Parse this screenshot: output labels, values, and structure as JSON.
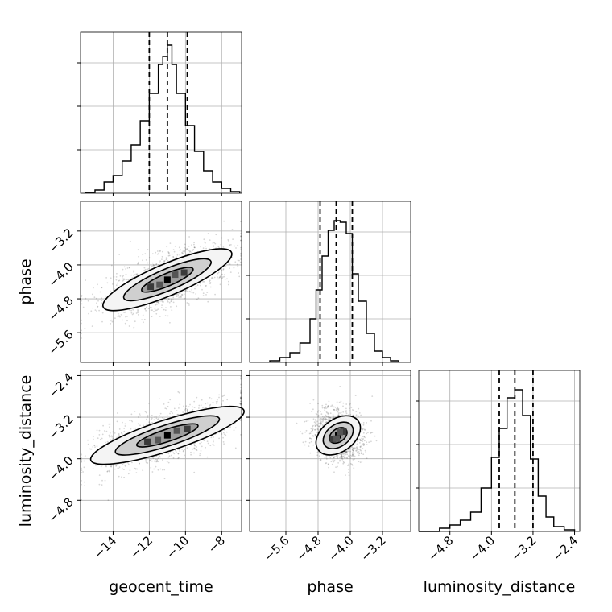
{
  "chart_data": {
    "type": "corner",
    "parameters": [
      "geocent_time",
      "phase",
      "luminosity_distance"
    ],
    "grid": true,
    "marginals": [
      {
        "parameter": "geocent_time",
        "xlim": [
          -15.8,
          -6.9
        ],
        "xticks": [
          -14,
          -12,
          -10,
          -8
        ],
        "xtick_labels": [
          "−14",
          "−12",
          "−10",
          "−8"
        ],
        "quantiles": [
          -12.0,
          -11.0,
          -9.9
        ],
        "bin_edges": [
          -15.5,
          -15.0,
          -14.5,
          -14.0,
          -13.5,
          -13.0,
          -12.5,
          -12.0,
          -11.5,
          -11.25,
          -11.0,
          -10.75,
          -10.5,
          -10.0,
          -9.5,
          -9.0,
          -8.5,
          -8.0,
          -7.5,
          -7.0
        ],
        "counts": [
          0.005,
          0.02,
          0.07,
          0.11,
          0.2,
          0.3,
          0.45,
          0.62,
          0.8,
          0.85,
          0.92,
          0.8,
          0.62,
          0.42,
          0.26,
          0.14,
          0.07,
          0.03,
          0.01
        ]
      },
      {
        "parameter": "phase",
        "xlim": [
          -6.5,
          -2.5
        ],
        "xticks": [
          -5.6,
          -4.8,
          -4.0,
          -3.2
        ],
        "xtick_labels": [
          "−5.6",
          "−4.8",
          "−4.0",
          "−3.2"
        ],
        "quantiles": [
          -4.75,
          -4.35,
          -3.95
        ],
        "bin_edges": [
          -6.0,
          -5.75,
          -5.5,
          -5.25,
          -5.0,
          -4.85,
          -4.7,
          -4.55,
          -4.4,
          -4.25,
          -4.1,
          -3.95,
          -3.8,
          -3.6,
          -3.4,
          -3.2,
          -3.0,
          -2.8
        ],
        "counts": [
          0.01,
          0.03,
          0.06,
          0.12,
          0.27,
          0.45,
          0.66,
          0.82,
          0.88,
          0.87,
          0.8,
          0.55,
          0.38,
          0.18,
          0.07,
          0.03,
          0.01
        ]
      },
      {
        "parameter": "luminosity_distance",
        "xlim": [
          -5.4,
          -2.3
        ],
        "xticks": [
          -4.8,
          -4.0,
          -3.2,
          -2.4
        ],
        "xtick_labels": [
          "−4.8",
          "−4.0",
          "−3.2",
          "−2.4"
        ],
        "quantiles": [
          -3.85,
          -3.55,
          -3.2
        ],
        "bin_edges": [
          -5.4,
          -5.0,
          -4.8,
          -4.6,
          -4.4,
          -4.2,
          -4.0,
          -3.85,
          -3.7,
          -3.55,
          -3.4,
          -3.25,
          -3.1,
          -2.95,
          -2.8,
          -2.6,
          -2.4
        ],
        "counts": [
          0.0,
          0.02,
          0.04,
          0.07,
          0.12,
          0.27,
          0.46,
          0.64,
          0.83,
          0.88,
          0.72,
          0.45,
          0.22,
          0.09,
          0.03,
          0.01
        ]
      }
    ],
    "joint": [
      {
        "x": "geocent_time",
        "y": "phase",
        "xlim": [
          -15.8,
          -6.9
        ],
        "ylim": [
          -6.3,
          -2.5
        ],
        "yticks": [
          -5.6,
          -4.8,
          -4.0,
          -3.2
        ],
        "ytick_labels": [
          "−5.6",
          "−4.8",
          "−4.0",
          "−3.2"
        ],
        "center": [
          -11.0,
          -4.35
        ],
        "axis_major_length": 5.2,
        "axis_minor_length": 0.5,
        "angle_deg": 23
      },
      {
        "x": "geocent_time",
        "y": "luminosity_distance",
        "xlim": [
          -15.8,
          -6.9
        ],
        "ylim": [
          -5.4,
          -2.3
        ],
        "yticks": [
          -4.8,
          -4.0,
          -3.2,
          -2.4
        ],
        "ytick_labels": [
          "−4.8",
          "−4.0",
          "−3.2",
          "−2.4"
        ],
        "center": [
          -11.0,
          -3.55
        ],
        "axis_major_length": 4.9,
        "axis_minor_length": 0.4,
        "angle_deg": 18
      },
      {
        "x": "phase",
        "y": "luminosity_distance",
        "xlim": [
          -6.5,
          -2.5
        ],
        "ylim": [
          -5.4,
          -2.3
        ],
        "center": [
          -4.3,
          -3.55
        ],
        "axis_major_length": 1.5,
        "axis_minor_length": 0.42,
        "angle_deg": 36
      }
    ]
  }
}
